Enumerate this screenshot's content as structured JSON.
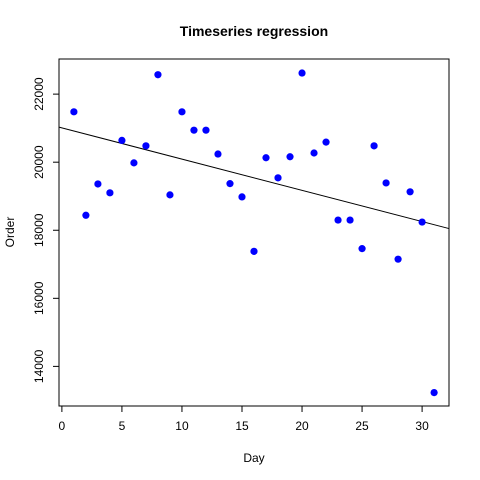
{
  "chart_data": {
    "type": "scatter",
    "title": "Timeseries regression",
    "xlabel": "Day",
    "ylabel": "Order",
    "xlim": [
      -0.24,
      32.24
    ],
    "ylim": [
      12836,
      23032
    ],
    "x_ticks": [
      0,
      5,
      10,
      15,
      20,
      25,
      30
    ],
    "y_ticks": [
      14000,
      16000,
      18000,
      20000,
      22000
    ],
    "grid": false,
    "legend": "none",
    "point_color": "#0000ff",
    "line_color": "#000000",
    "series": [
      {
        "x": [
          1,
          2,
          3,
          4,
          5,
          6,
          7,
          8,
          9,
          10,
          11,
          12,
          13,
          14,
          15,
          16,
          17,
          18,
          19,
          20,
          21,
          22,
          23,
          24,
          25,
          26,
          27,
          28,
          29,
          30,
          31
        ],
        "y": [
          21480,
          18440,
          19360,
          19100,
          20640,
          19980,
          20480,
          22570,
          19040,
          21480,
          20940,
          20940,
          20240,
          19370,
          18980,
          17380,
          20130,
          19540,
          20160,
          22620,
          20270,
          20590,
          18300,
          18300,
          17460,
          20480,
          19390,
          17150,
          19130,
          18240,
          13230
        ]
      }
    ],
    "regression_line": {
      "x": [
        -0.24,
        32.24
      ],
      "y": [
        21030,
        18050
      ]
    }
  }
}
